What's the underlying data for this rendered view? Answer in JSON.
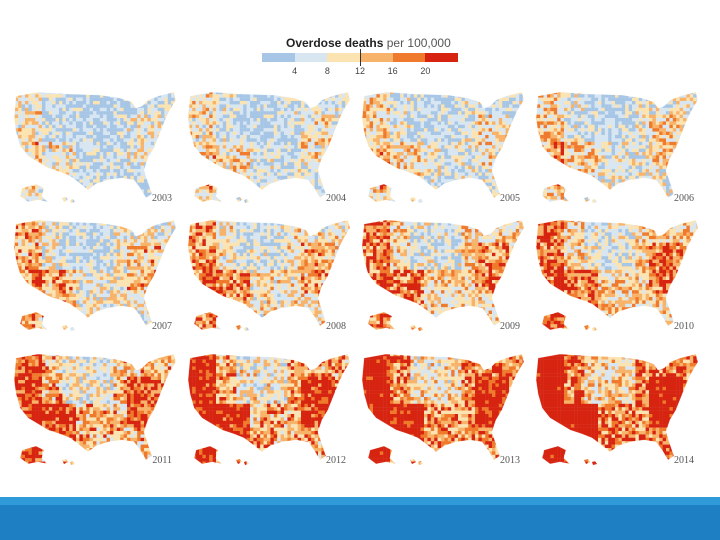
{
  "legend": {
    "title": "Overdose deaths",
    "unit": "per 100,000",
    "ticks": [
      "4",
      "8",
      "12",
      "16",
      "20"
    ],
    "colors": [
      "#a7c6e6",
      "#d8e6f2",
      "#fbe3b2",
      "#f8b36a",
      "#f07a2c",
      "#d62411"
    ]
  },
  "maps": [
    {
      "year": "2003",
      "intensity": 0.15
    },
    {
      "year": "2004",
      "intensity": 0.2
    },
    {
      "year": "2005",
      "intensity": 0.24
    },
    {
      "year": "2006",
      "intensity": 0.3
    },
    {
      "year": "2007",
      "intensity": 0.38
    },
    {
      "year": "2008",
      "intensity": 0.45
    },
    {
      "year": "2009",
      "intensity": 0.52
    },
    {
      "year": "2010",
      "intensity": 0.58
    },
    {
      "year": "2011",
      "intensity": 0.68
    },
    {
      "year": "2012",
      "intensity": 0.76
    },
    {
      "year": "2013",
      "intensity": 0.84
    },
    {
      "year": "2014",
      "intensity": 0.92
    }
  ],
  "colors": {
    "band": "#1e7fc2",
    "band_top": "#2f9ad8"
  }
}
